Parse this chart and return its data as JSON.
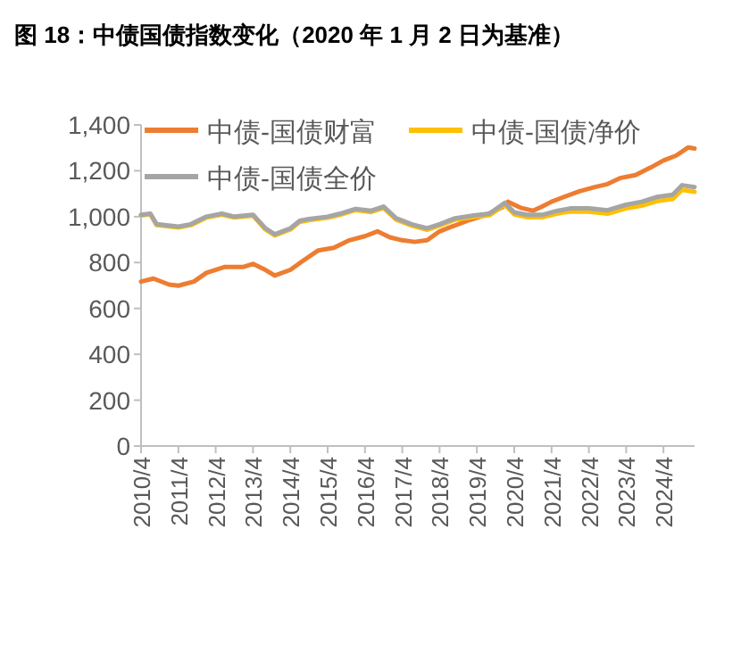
{
  "chart_data": {
    "type": "line",
    "title": "图 18：中债国债指数变化（2020 年 1 月 2 日为基准）",
    "xlim": [
      "2010-04",
      "2025-02"
    ],
    "xticks": [
      {
        "value": "2010-04",
        "label": "2010/4"
      },
      {
        "value": "2011-04",
        "label": "2011/4"
      },
      {
        "value": "2012-04",
        "label": "2012/4"
      },
      {
        "value": "2013-04",
        "label": "2013/4"
      },
      {
        "value": "2014-04",
        "label": "2014/4"
      },
      {
        "value": "2015-04",
        "label": "2015/4"
      },
      {
        "value": "2016-04",
        "label": "2016/4"
      },
      {
        "value": "2017-04",
        "label": "2017/4"
      },
      {
        "value": "2018-04",
        "label": "2018/4"
      },
      {
        "value": "2019-04",
        "label": "2019/4"
      },
      {
        "value": "2020-04",
        "label": "2020/4"
      },
      {
        "value": "2021-04",
        "label": "2021/4"
      },
      {
        "value": "2022-04",
        "label": "2022/4"
      },
      {
        "value": "2023-04",
        "label": "2023/4"
      },
      {
        "value": "2024-04",
        "label": "2024/4"
      }
    ],
    "ylim": [
      0,
      1400
    ],
    "yticks": [
      0,
      200,
      400,
      600,
      800,
      {
        "value": 1000,
        "label": "1,000"
      },
      {
        "value": 1200,
        "label": "1,200"
      },
      {
        "value": 1400,
        "label": "1,400"
      }
    ],
    "grid": false,
    "legend": "top left",
    "marker": "none",
    "line_style": "solid",
    "series": [
      {
        "name": "中债-国债财富",
        "color": "#ed7d31",
        "x": [
          "2010-04",
          "2010-08",
          "2011-01",
          "2011-04",
          "2011-09",
          "2012-01",
          "2012-07",
          "2013-01",
          "2013-04",
          "2013-08",
          "2013-11",
          "2014-04",
          "2014-08",
          "2015-01",
          "2015-06",
          "2015-11",
          "2016-04",
          "2016-08",
          "2016-12",
          "2017-04",
          "2017-08",
          "2017-12",
          "2018-04",
          "2018-08",
          "2019-01",
          "2019-07",
          "2019-12",
          "2020-02",
          "2020-06",
          "2020-10",
          "2021-01",
          "2021-04",
          "2021-08",
          "2022-01",
          "2022-06",
          "2022-10",
          "2023-02",
          "2023-07",
          "2023-12",
          "2024-04",
          "2024-08",
          "2024-12",
          "2025-02"
        ],
        "values": [
          717,
          730,
          704,
          699,
          717,
          755,
          781,
          781,
          794,
          768,
          743,
          768,
          807,
          853,
          864,
          897,
          915,
          936,
          910,
          897,
          890,
          897,
          936,
          957,
          982,
          1008,
          1039,
          1065,
          1039,
          1026,
          1044,
          1065,
          1086,
          1111,
          1129,
          1142,
          1168,
          1181,
          1215,
          1245,
          1266,
          1302,
          1297
        ]
      },
      {
        "name": "中债-国债净价",
        "color": "#ffc000",
        "x": [
          "2010-04",
          "2010-07",
          "2010-09",
          "2011-04",
          "2011-08",
          "2012-01",
          "2012-06",
          "2012-10",
          "2013-04",
          "2013-08",
          "2013-11",
          "2014-04",
          "2014-07",
          "2014-10",
          "2015-04",
          "2015-08",
          "2016-01",
          "2016-06",
          "2016-10",
          "2017-02",
          "2017-07",
          "2017-12",
          "2018-04",
          "2018-09",
          "2019-03",
          "2019-08",
          "2020-01",
          "2020-04",
          "2020-08",
          "2021-01",
          "2021-06",
          "2021-10",
          "2022-04",
          "2022-10",
          "2023-04",
          "2023-09",
          "2024-02",
          "2024-07",
          "2024-10",
          "2025-02"
        ],
        "values": [
          1005,
          1010,
          963,
          953,
          963,
          996,
          1009,
          996,
          1004,
          944,
          918,
          944,
          977,
          985,
          995,
          1008,
          1029,
          1020,
          1038,
          987,
          961,
          943,
          961,
          987,
          998,
          1006,
          1052,
          1010,
          998,
          997,
          1014,
          1023,
          1022,
          1013,
          1036,
          1048,
          1068,
          1077,
          1117,
          1108
        ]
      },
      {
        "name": "中债-国债全价",
        "color": "#a5a5a5",
        "x": [
          "2010-04",
          "2010-07",
          "2010-09",
          "2011-04",
          "2011-08",
          "2012-01",
          "2012-06",
          "2012-10",
          "2013-04",
          "2013-08",
          "2013-11",
          "2014-04",
          "2014-07",
          "2014-10",
          "2015-04",
          "2015-08",
          "2016-01",
          "2016-06",
          "2016-10",
          "2017-02",
          "2017-07",
          "2017-12",
          "2018-04",
          "2018-09",
          "2019-03",
          "2019-08",
          "2020-01",
          "2020-04",
          "2020-08",
          "2021-01",
          "2021-06",
          "2021-10",
          "2022-04",
          "2022-10",
          "2023-04",
          "2023-09",
          "2024-02",
          "2024-07",
          "2024-10",
          "2025-02"
        ],
        "values": [
          1008,
          1013,
          967,
          957,
          967,
          1000,
          1013,
          1000,
          1008,
          949,
          923,
          949,
          982,
          990,
          1000,
          1013,
          1034,
          1026,
          1044,
          993,
          967,
          949,
          967,
          993,
          1005,
          1013,
          1060,
          1019,
          1008,
          1008,
          1026,
          1036,
          1036,
          1028,
          1052,
          1065,
          1086,
          1096,
          1137,
          1129
        ]
      }
    ]
  }
}
